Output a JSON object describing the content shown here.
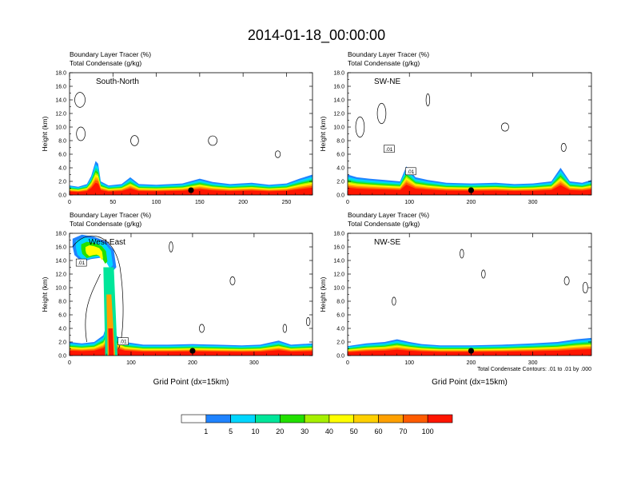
{
  "figure": {
    "title": "2014-01-18_00:00:00",
    "footnote": "Total Condensate Contours: .01 to .01 by .000"
  },
  "colorbar": {
    "labels": [
      "1",
      "5",
      "10",
      "20",
      "30",
      "40",
      "50",
      "60",
      "70",
      "100"
    ],
    "colors": [
      "#ffffff",
      "#1f83ff",
      "#00d6ff",
      "#00e69a",
      "#22e000",
      "#a6f000",
      "#ffff00",
      "#ffd000",
      "#ffa000",
      "#ff5c00",
      "#ff1500"
    ]
  },
  "chart_data": [
    {
      "type": "heatmap",
      "panel": "south-north",
      "title_line1": "Boundary Layer Tracer   (%)",
      "title_line2": "Total Condensate   (g/kg)",
      "inset_label": "South-North",
      "ylabel": "Height (km)",
      "xlabel": "",
      "xlim": [
        0,
        280
      ],
      "ylim": [
        0,
        18
      ],
      "xticks": [
        "0",
        "50",
        "100",
        "150",
        "200",
        "250"
      ],
      "xtick_values": [
        0,
        50,
        100,
        150,
        200,
        250
      ],
      "yticks": [
        "0.0",
        "2.0",
        "4.0",
        "6.0",
        "8.0",
        "10.0",
        "12.0",
        "14.0",
        "16.0",
        "18.0"
      ],
      "contour_labels": [],
      "marker_x": 140,
      "plume_top": [
        [
          0,
          1.4
        ],
        [
          10,
          1.2
        ],
        [
          20,
          1.6
        ],
        [
          25,
          2.8
        ],
        [
          30,
          5.0
        ],
        [
          33,
          4.6
        ],
        [
          36,
          2.0
        ],
        [
          45,
          1.4
        ],
        [
          60,
          1.6
        ],
        [
          70,
          2.6
        ],
        [
          80,
          1.6
        ],
        [
          100,
          1.5
        ],
        [
          130,
          1.7
        ],
        [
          150,
          2.4
        ],
        [
          165,
          1.9
        ],
        [
          185,
          1.6
        ],
        [
          210,
          1.8
        ],
        [
          230,
          1.5
        ],
        [
          250,
          1.7
        ],
        [
          265,
          2.4
        ],
        [
          280,
          3.0
        ]
      ]
    },
    {
      "type": "heatmap",
      "panel": "sw-ne",
      "title_line1": "Boundary Layer Tracer   (%)",
      "title_line2": "Total Condensate   (g/kg)",
      "inset_label": "SW-NE",
      "ylabel": "Height (km)",
      "xlabel": "",
      "xlim": [
        0,
        395
      ],
      "ylim": [
        0,
        18
      ],
      "xticks": [
        "0",
        "100",
        "200",
        "300"
      ],
      "xtick_values": [
        0,
        100,
        200,
        300
      ],
      "yticks": [
        "0.0",
        "2.0",
        "4.0",
        "6.0",
        "8.0",
        "10.0",
        "12.0",
        "14.0",
        "16.0",
        "18.0"
      ],
      "contour_labels": [
        ".01",
        ".01"
      ],
      "marker_x": 200,
      "plume_top": [
        [
          0,
          3.0
        ],
        [
          15,
          2.6
        ],
        [
          35,
          2.4
        ],
        [
          60,
          2.2
        ],
        [
          85,
          2.0
        ],
        [
          95,
          4.2
        ],
        [
          110,
          2.6
        ],
        [
          130,
          2.2
        ],
        [
          160,
          1.8
        ],
        [
          200,
          1.7
        ],
        [
          240,
          1.8
        ],
        [
          270,
          1.6
        ],
        [
          300,
          1.7
        ],
        [
          330,
          2.0
        ],
        [
          345,
          4.0
        ],
        [
          360,
          2.0
        ],
        [
          380,
          1.8
        ],
        [
          395,
          2.2
        ]
      ]
    },
    {
      "type": "heatmap",
      "panel": "west-east",
      "title_line1": "Boundary Layer Tracer   (%)",
      "title_line2": "Total Condensate   (g/kg)",
      "inset_label": "West-East",
      "ylabel": "Height (km)",
      "xlabel": "Grid Point (dx=15km)",
      "xlim": [
        0,
        395
      ],
      "ylim": [
        0,
        18
      ],
      "xticks": [
        "0",
        "100",
        "200",
        "300"
      ],
      "xtick_values": [
        0,
        100,
        200,
        300
      ],
      "yticks": [
        "0.0",
        "2.0",
        "4.0",
        "6.0",
        "8.0",
        "10.0",
        "12.0",
        "14.0",
        "16.0",
        "18.0"
      ],
      "contour_labels": [
        ".01",
        ".01"
      ],
      "marker_x": 200,
      "plume_top": [
        [
          0,
          2.0
        ],
        [
          20,
          1.8
        ],
        [
          40,
          2.0
        ],
        [
          55,
          3.0
        ],
        [
          65,
          6.0
        ],
        [
          75,
          3.0
        ],
        [
          90,
          2.0
        ],
        [
          120,
          1.6
        ],
        [
          160,
          1.6
        ],
        [
          200,
          1.7
        ],
        [
          240,
          1.6
        ],
        [
          280,
          1.5
        ],
        [
          310,
          1.6
        ],
        [
          340,
          2.2
        ],
        [
          360,
          1.6
        ],
        [
          395,
          1.8
        ]
      ],
      "anvil": [
        [
          5,
          17.2
        ],
        [
          20,
          17.8
        ],
        [
          40,
          17.5
        ],
        [
          60,
          16.8
        ],
        [
          72,
          15.5
        ],
        [
          76,
          13.0
        ],
        [
          70,
          12.4
        ],
        [
          60,
          14.0
        ],
        [
          50,
          14.4
        ],
        [
          35,
          14.2
        ],
        [
          20,
          13.8
        ],
        [
          8,
          14.8
        ],
        [
          5,
          16.0
        ]
      ]
    },
    {
      "type": "heatmap",
      "panel": "nw-se",
      "title_line1": "Boundary Layer Tracer   (%)",
      "title_line2": "Total Condensate   (g/kg)",
      "inset_label": "NW-SE",
      "ylabel": "Height (km)",
      "xlabel": "Grid Point (dx=15km)",
      "xlim": [
        0,
        395
      ],
      "ylim": [
        0,
        18
      ],
      "xticks": [
        "0",
        "100",
        "200",
        "300"
      ],
      "xtick_values": [
        0,
        100,
        200,
        300
      ],
      "yticks": [
        "0.0",
        "2.0",
        "4.0",
        "6.0",
        "8.0",
        "10.0",
        "12.0",
        "14.0",
        "16.0",
        "18.0"
      ],
      "contour_labels": [],
      "marker_x": 200,
      "plume_top": [
        [
          0,
          1.4
        ],
        [
          30,
          1.8
        ],
        [
          60,
          2.0
        ],
        [
          80,
          2.4
        ],
        [
          100,
          2.0
        ],
        [
          120,
          1.7
        ],
        [
          150,
          1.5
        ],
        [
          200,
          1.5
        ],
        [
          250,
          1.6
        ],
        [
          300,
          1.8
        ],
        [
          340,
          2.0
        ],
        [
          370,
          2.4
        ],
        [
          395,
          2.6
        ]
      ]
    }
  ]
}
